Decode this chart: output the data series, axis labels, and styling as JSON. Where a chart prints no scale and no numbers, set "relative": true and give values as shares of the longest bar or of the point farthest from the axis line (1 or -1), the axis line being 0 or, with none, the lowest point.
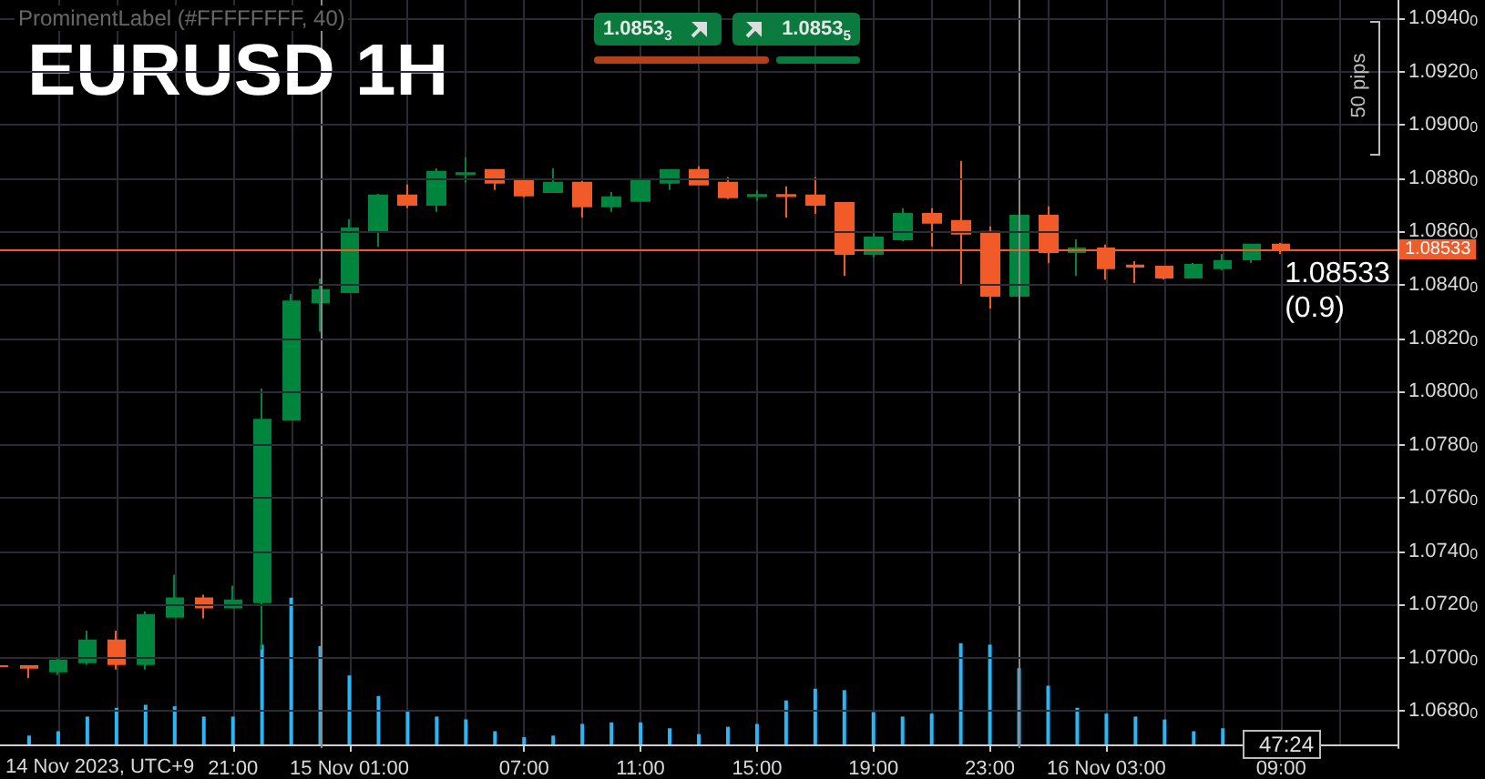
{
  "chart_data": [
    {
      "type": "candlestick",
      "title": "EURUSD 1H",
      "x": [
        "2023-11-14T13:00",
        "2023-11-14T14:00",
        "2023-11-14T15:00",
        "2023-11-14T16:00",
        "2023-11-14T17:00",
        "2023-11-14T18:00",
        "2023-11-14T19:00",
        "2023-11-14T20:00",
        "2023-11-14T21:00",
        "2023-11-14T22:00",
        "2023-11-14T23:00",
        "2023-11-15T00:00",
        "2023-11-15T01:00",
        "2023-11-15T02:00",
        "2023-11-15T03:00",
        "2023-11-15T04:00",
        "2023-11-15T05:00",
        "2023-11-15T06:00",
        "2023-11-15T07:00",
        "2023-11-15T08:00",
        "2023-11-15T09:00",
        "2023-11-15T10:00",
        "2023-11-15T11:00",
        "2023-11-15T12:00",
        "2023-11-15T13:00",
        "2023-11-15T14:00",
        "2023-11-15T15:00",
        "2023-11-15T16:00",
        "2023-11-15T17:00",
        "2023-11-15T18:00",
        "2023-11-15T19:00",
        "2023-11-15T20:00",
        "2023-11-15T21:00",
        "2023-11-15T22:00",
        "2023-11-15T23:00",
        "2023-11-16T00:00",
        "2023-11-16T01:00",
        "2023-11-16T02:00",
        "2023-11-16T03:00",
        "2023-11-16T04:00",
        "2023-11-16T05:00",
        "2023-11-16T06:00",
        "2023-11-16T07:00",
        "2023-11-16T08:00",
        "2023-11-16T09:00"
      ],
      "ohlc": [
        [
          1.06968,
          1.06968,
          1.06968,
          1.06968
        ],
        [
          1.06968,
          1.06968,
          1.06923,
          1.06962
        ],
        [
          1.06948,
          1.06998,
          1.06934,
          1.06989
        ],
        [
          1.06982,
          1.07101,
          1.06973,
          1.07064
        ],
        [
          1.07064,
          1.07101,
          1.06955,
          1.06975
        ],
        [
          1.06975,
          1.07174,
          1.06955,
          1.0716
        ],
        [
          1.07153,
          1.07311,
          1.07153,
          1.07222
        ],
        [
          1.07222,
          1.07236,
          1.07147,
          1.07188
        ],
        [
          1.07188,
          1.0727,
          1.07188,
          1.07215
        ],
        [
          1.07208,
          1.0801,
          1.0703,
          1.07893
        ],
        [
          1.07893,
          1.08366,
          1.07893,
          1.08338
        ],
        [
          1.08334,
          1.08423,
          1.08224,
          1.0838
        ],
        [
          1.08373,
          1.08647,
          1.08373,
          1.08612
        ],
        [
          1.08605,
          1.08742,
          1.08544,
          1.08736
        ],
        [
          1.08736,
          1.08777,
          1.08688,
          1.08701
        ],
        [
          1.08701,
          1.08838,
          1.08674,
          1.08825
        ],
        [
          1.08815,
          1.08879,
          1.08784,
          1.0882
        ],
        [
          1.08832,
          1.08832,
          1.08756,
          1.08784
        ],
        [
          1.0879,
          1.08797,
          1.08729,
          1.08736
        ],
        [
          1.08749,
          1.08838,
          1.08749,
          1.08784
        ],
        [
          1.08784,
          1.0879,
          1.08653,
          1.08695
        ],
        [
          1.08695,
          1.08749,
          1.08674,
          1.08729
        ],
        [
          1.08715,
          1.08797,
          1.08715,
          1.0879
        ],
        [
          1.08784,
          1.08832,
          1.08756,
          1.08832
        ],
        [
          1.08832,
          1.08845,
          1.08777,
          1.08777
        ],
        [
          1.08784,
          1.08804,
          1.08722,
          1.08729
        ],
        [
          1.08733,
          1.08756,
          1.08715,
          1.08738
        ],
        [
          1.08738,
          1.0877,
          1.08653,
          1.08733
        ],
        [
          1.08736,
          1.08804,
          1.08667,
          1.08701
        ],
        [
          1.08708,
          1.08708,
          1.08434,
          1.08516
        ],
        [
          1.08516,
          1.08599,
          1.08503,
          1.08578
        ],
        [
          1.08571,
          1.08688,
          1.08564,
          1.08667
        ],
        [
          1.08667,
          1.08688,
          1.08544,
          1.08633
        ],
        [
          1.0864,
          1.08866,
          1.084,
          1.08592
        ],
        [
          1.08599,
          1.0862,
          1.08311,
          1.08359
        ],
        [
          1.08359,
          1.0866,
          1.08338,
          1.0866
        ],
        [
          1.0866,
          1.08695,
          1.08482,
          1.08523
        ],
        [
          1.08523,
          1.08571,
          1.08434,
          1.08537
        ],
        [
          1.08537,
          1.08551,
          1.0842,
          1.08462
        ],
        [
          1.08473,
          1.08489,
          1.08407,
          1.08468
        ],
        [
          1.08468,
          1.08468,
          1.0842,
          1.08427
        ],
        [
          1.08427,
          1.08482,
          1.08427,
          1.08475
        ],
        [
          1.08462,
          1.08516,
          1.08455,
          1.0849
        ],
        [
          1.08496,
          1.08551,
          1.08482,
          1.08551
        ],
        [
          1.08551,
          1.08558,
          1.08516,
          1.08533
        ]
      ],
      "colors": [
        "#f15a29",
        "#f15a29",
        "#00853f",
        "#00853f",
        "#f15a29",
        "#00853f",
        "#00853f",
        "#f15a29",
        "#00853f",
        "#00853f",
        "#00853f",
        "#00853f",
        "#00853f",
        "#00853f",
        "#f15a29",
        "#00853f",
        "#00853f",
        "#f15a29",
        "#f15a29",
        "#00853f",
        "#f15a29",
        "#00853f",
        "#00853f",
        "#00853f",
        "#f15a29",
        "#f15a29",
        "#00853f",
        "#f15a29",
        "#f15a29",
        "#f15a29",
        "#00853f",
        "#00853f",
        "#f15a29",
        "#f15a29",
        "#f15a29",
        "#00853f",
        "#f15a29",
        "#00853f",
        "#f15a29",
        "#f15a29",
        "#f15a29",
        "#00853f",
        "#00853f",
        "#00853f",
        "#f15a29"
      ],
      "xlim": [
        "2023-11-14T13:00",
        "2023-11-16T13:00"
      ],
      "ylim": [
        1.0666,
        1.0947
      ],
      "yticks": [
        {
          "value": 1.068,
          "label": "1.06800"
        },
        {
          "value": 1.07,
          "label": "1.07000"
        },
        {
          "value": 1.072,
          "label": "1.07200"
        },
        {
          "value": 1.074,
          "label": "1.07400"
        },
        {
          "value": 1.076,
          "label": "1.07600"
        },
        {
          "value": 1.078,
          "label": "1.07800"
        },
        {
          "value": 1.08,
          "label": "1.08000"
        },
        {
          "value": 1.082,
          "label": "1.08200"
        },
        {
          "value": 1.084,
          "label": "1.08400"
        },
        {
          "value": 1.086,
          "label": "1.08600"
        },
        {
          "value": 1.088,
          "label": "1.08800"
        },
        {
          "value": 1.09,
          "label": "1.09000"
        },
        {
          "value": 1.092,
          "label": "1.09200"
        },
        {
          "value": 1.094,
          "label": "1.09400"
        }
      ],
      "grid": "y",
      "tick_labels": "y",
      "ref_lines": [
        {
          "axis": "y",
          "value": 1.08533,
          "label": "1.08533",
          "color": "#f15a29"
        },
        {
          "axis": "x",
          "value": "2023-11-15T00:00",
          "label": null,
          "color": "#8a8a8a"
        },
        {
          "axis": "x",
          "value": "2023-11-16T00:00",
          "label": null,
          "color": "#8a8a8a"
        }
      ],
      "annotations": [
        "ProminentLabel (#FFFFFFFF, 40)",
        "1.0853$_{3}$",
        "1.0853$_{5}$",
        "50 pips",
        {
          "text": "1.08533\n(0.9)",
          "x": "2023-11-16T09:00",
          "y": 1.08533
        },
        "47:24"
      ]
    },
    {
      "type": "bar",
      "relative": true,
      "tick_labels": "x",
      "color": "#29b6f6",
      "grid": "x",
      "xlabel": "14 Nov 2023, UTC+9",
      "xticks": [
        {
          "value": "2023-11-14T15:00",
          "label": null
        },
        {
          "value": "2023-11-14T17:00",
          "label": null
        },
        {
          "value": "2023-11-14T19:00",
          "label": null
        },
        {
          "value": "2023-11-14T21:00",
          "label": "21:00"
        },
        {
          "value": "2023-11-14T23:00",
          "label": null
        },
        {
          "value": "2023-11-15T01:00",
          "label": "15 Nov 01:00"
        },
        {
          "value": "2023-11-15T03:00",
          "label": null
        },
        {
          "value": "2023-11-15T05:00",
          "label": null
        },
        {
          "value": "2023-11-15T07:00",
          "label": "07:00"
        },
        {
          "value": "2023-11-15T09:00",
          "label": null
        },
        {
          "value": "2023-11-15T11:00",
          "label": "11:00"
        },
        {
          "value": "2023-11-15T13:00",
          "label": null
        },
        {
          "value": "2023-11-15T15:00",
          "label": "15:00"
        },
        {
          "value": "2023-11-15T17:00",
          "label": null
        },
        {
          "value": "2023-11-15T19:00",
          "label": "19:00"
        },
        {
          "value": "2023-11-15T21:00",
          "label": null
        },
        {
          "value": "2023-11-15T23:00",
          "label": "23:00"
        },
        {
          "value": "2023-11-16T01:00",
          "label": null
        },
        {
          "value": "2023-11-16T03:00",
          "label": "16 Nov 03:00"
        },
        {
          "value": "2023-11-16T05:00",
          "label": null
        },
        {
          "value": "2023-11-16T07:00",
          "label": null
        },
        {
          "value": "2023-11-16T09:00",
          "label": "09:00"
        },
        {
          "value": "2023-11-16T11:00",
          "label": null
        }
      ],
      "x": [
        "2023-11-14T14:00",
        "2023-11-14T15:00",
        "2023-11-14T16:00",
        "2023-11-14T17:00",
        "2023-11-14T18:00",
        "2023-11-14T19:00",
        "2023-11-14T20:00",
        "2023-11-14T21:00",
        "2023-11-14T22:00",
        "2023-11-14T23:00",
        "2023-11-15T00:00",
        "2023-11-15T01:00",
        "2023-11-15T02:00",
        "2023-11-15T03:00",
        "2023-11-15T04:00",
        "2023-11-15T05:00",
        "2023-11-15T06:00",
        "2023-11-15T07:00",
        "2023-11-15T08:00",
        "2023-11-15T09:00",
        "2023-11-15T10:00",
        "2023-11-15T11:00",
        "2023-11-15T12:00",
        "2023-11-15T13:00",
        "2023-11-15T14:00",
        "2023-11-15T15:00",
        "2023-11-15T16:00",
        "2023-11-15T17:00",
        "2023-11-15T18:00",
        "2023-11-15T19:00",
        "2023-11-15T20:00",
        "2023-11-15T21:00",
        "2023-11-15T22:00",
        "2023-11-15T23:00",
        "2023-11-16T00:00",
        "2023-11-16T01:00",
        "2023-11-16T02:00",
        "2023-11-16T03:00",
        "2023-11-16T04:00",
        "2023-11-16T05:00",
        "2023-11-16T06:00",
        "2023-11-16T07:00"
      ],
      "values": [
        0.06,
        0.09,
        0.19,
        0.25,
        0.27,
        0.26,
        0.19,
        0.19,
        0.68,
        1,
        0.67,
        0.47,
        0.33,
        0.23,
        0.19,
        0.17,
        0.09,
        0.05,
        0.06,
        0.14,
        0.15,
        0.15,
        0.11,
        0.07,
        0.12,
        0.14,
        0.3,
        0.38,
        0.37,
        0.22,
        0.19,
        0.21,
        0.69,
        0.68,
        0.52,
        0.4,
        0.25,
        0.21,
        0.19,
        0.17,
        0.09,
        0.11
      ],
      "xlim": [
        "2023-11-14T13:00",
        "2023-11-16T13:00"
      ]
    }
  ]
}
